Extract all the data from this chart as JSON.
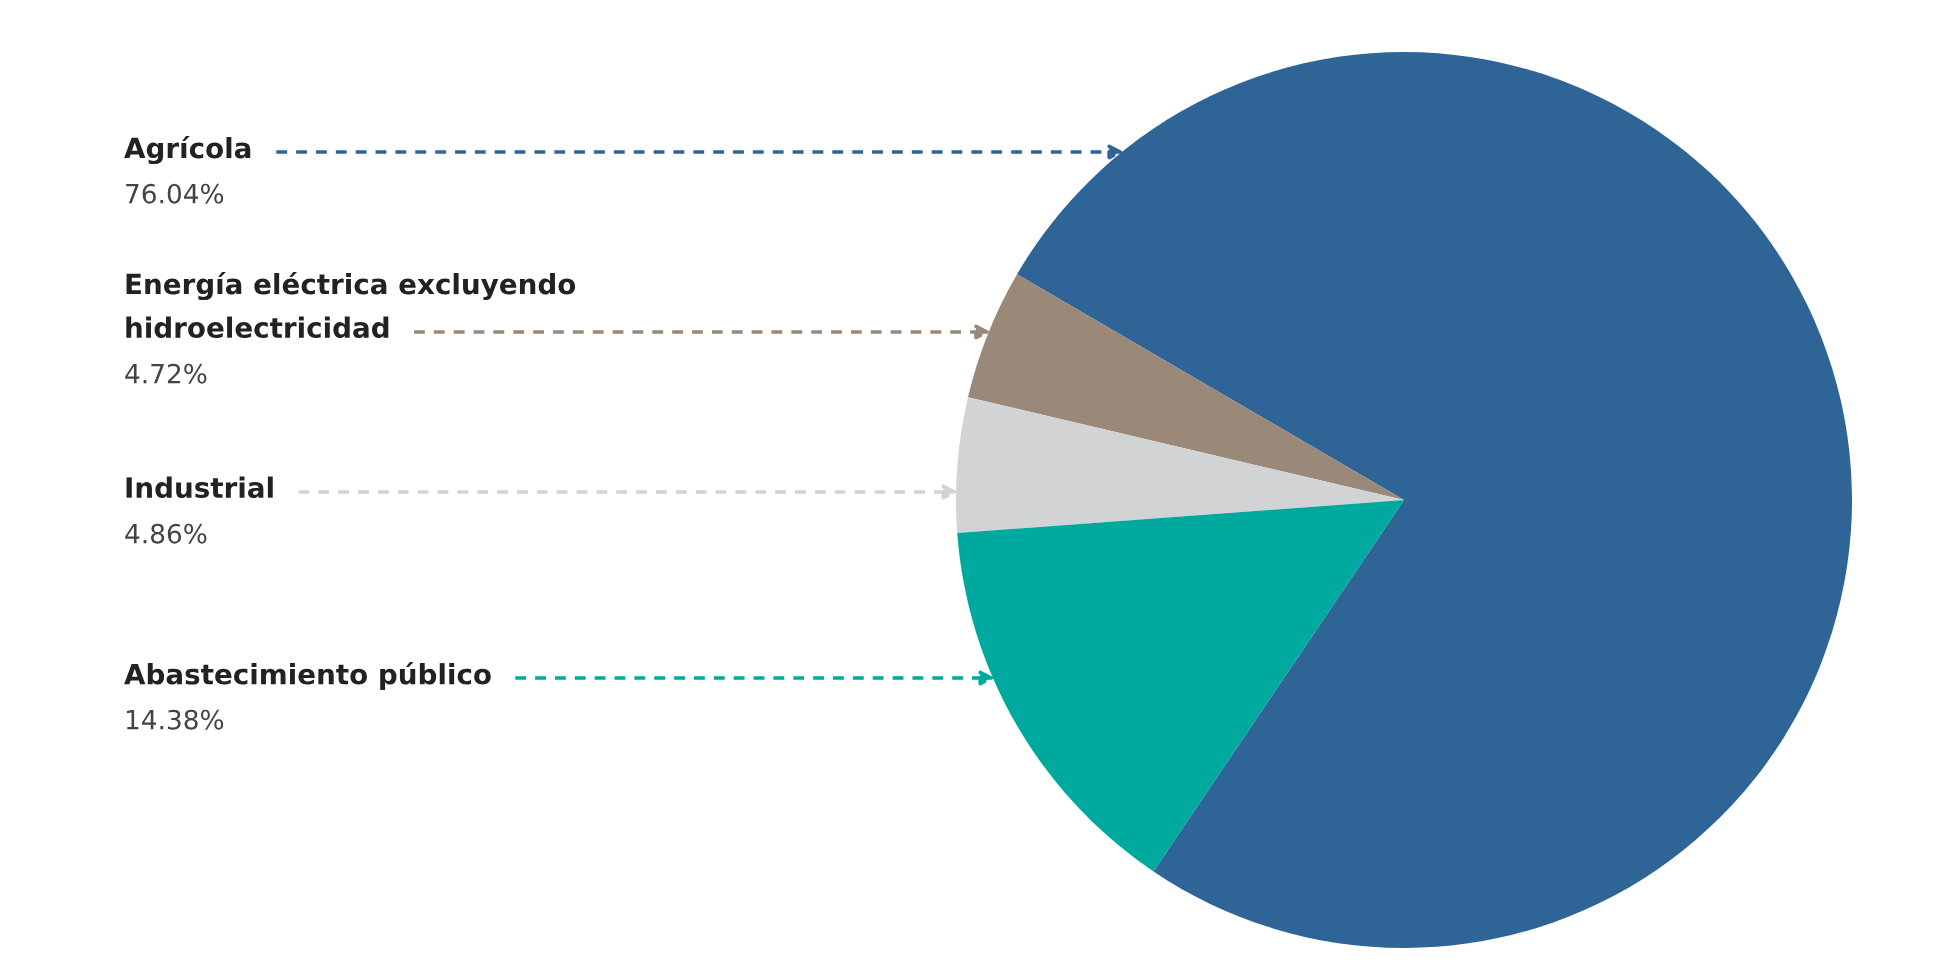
{
  "chart_data": {
    "type": "pie",
    "categories": [
      "Agrícola",
      "Energía eléctrica excluyendo hidroelectricidad",
      "Industrial",
      "Abastecimiento público"
    ],
    "values": [
      76.04,
      4.72,
      4.86,
      14.38
    ],
    "value_labels": [
      "76.04%",
      "4.72%",
      "4.86%",
      "14.38%"
    ],
    "colors": [
      "#2e6496",
      "#9a8878",
      "#d2d3d5",
      "#00a99d"
    ],
    "legend": false
  }
}
